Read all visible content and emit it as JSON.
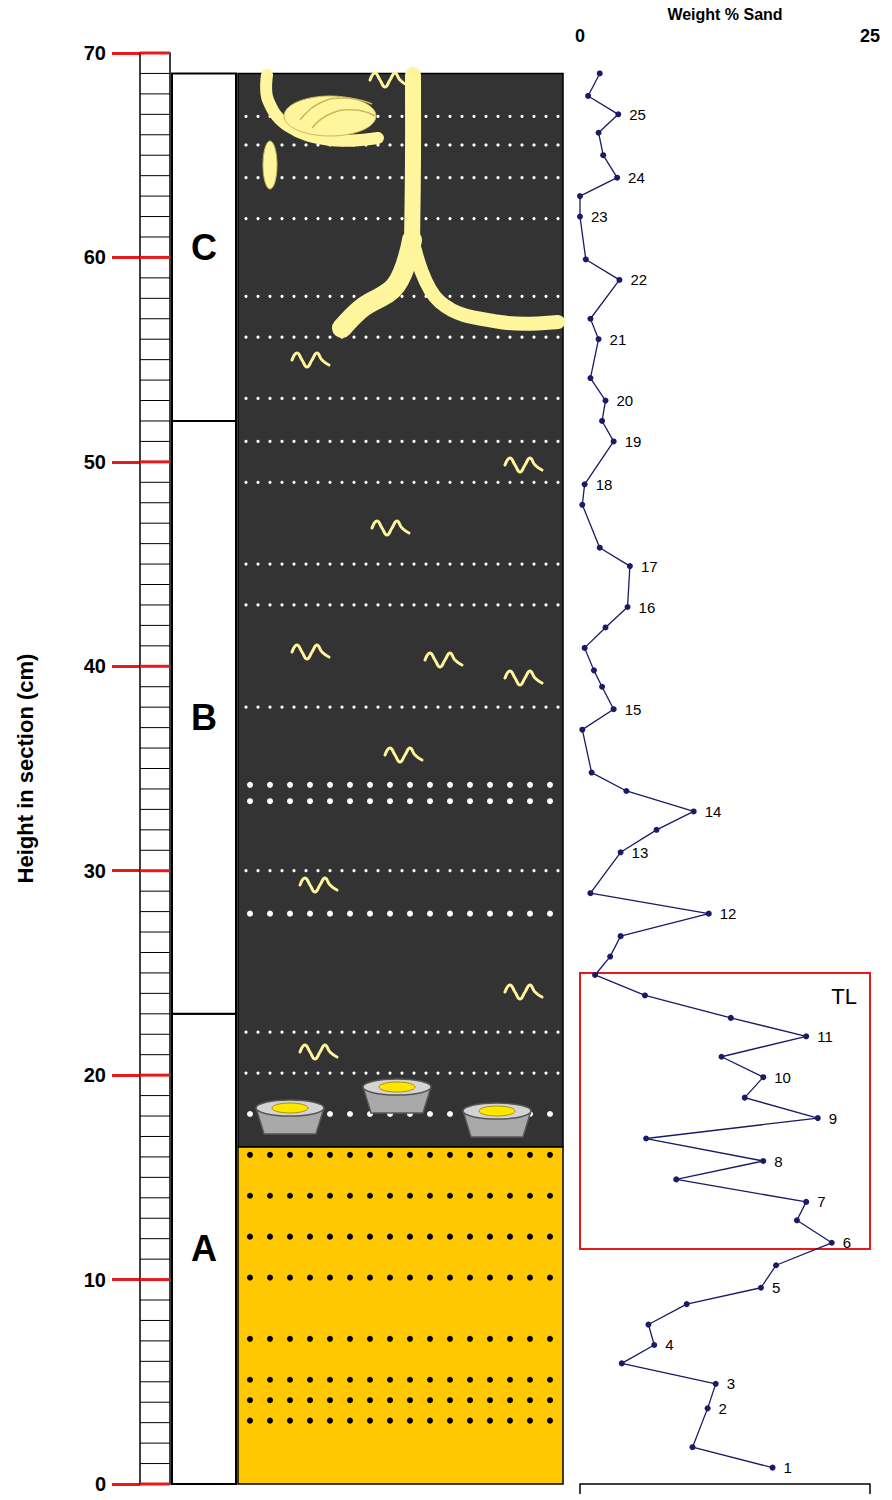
{
  "chart_data": {
    "type": "line",
    "x_label": "Weight % Sand",
    "y_label": "Height in section (cm)",
    "xlim": [
      0,
      25
    ],
    "xticks": [
      0,
      25
    ],
    "ylim": [
      0,
      70
    ],
    "yticks": [
      0,
      10,
      20,
      30,
      40,
      50,
      60,
      70
    ],
    "series": [
      {
        "color": "#1a1a66",
        "marker": "circle",
        "line_style": "solid",
        "x": [
          16.6,
          9.7,
          11.0,
          11.7,
          3.6,
          6.4,
          5.9,
          9.2,
          15.6,
          16.9,
          21.7,
          18.7,
          19.5,
          8.3,
          15.8,
          5.7,
          20.5,
          14.2,
          15.8,
          12.2,
          19.5,
          13.0,
          5.6,
          1.3,
          2.6,
          3.5,
          11.1,
          0.9,
          3.5,
          6.6,
          9.8,
          4.0,
          1.0,
          0.2,
          2.9,
          1.9,
          1.2,
          0.4,
          2.2,
          4.1,
          4.3,
          1.7,
          0.2,
          0.4,
          2.9,
          1.9,
          2.2,
          0.9,
          1.6,
          0.9,
          3.4,
          0.5,
          0.0,
          0.0,
          3.2,
          2.0,
          1.6,
          3.3,
          0.7,
          1.7
        ],
        "y": [
          0.8,
          1.8,
          3.7,
          4.9,
          5.9,
          6.8,
          7.8,
          8.8,
          9.6,
          10.7,
          11.8,
          12.9,
          13.8,
          14.9,
          15.8,
          16.9,
          17.9,
          18.9,
          19.9,
          20.9,
          21.9,
          22.8,
          23.9,
          24.9,
          25.8,
          26.8,
          27.9,
          28.9,
          30.9,
          32.0,
          32.9,
          33.9,
          34.8,
          36.9,
          37.9,
          39.0,
          39.8,
          40.9,
          41.9,
          42.9,
          44.9,
          45.8,
          47.9,
          48.9,
          51.0,
          52.0,
          53.0,
          54.1,
          56.0,
          57.0,
          58.9,
          59.9,
          62.0,
          63.0,
          63.9,
          65.0,
          66.1,
          67.0,
          67.9,
          69.0
        ],
        "point_labels": [
          "1",
          null,
          "2",
          "3",
          null,
          "4",
          null,
          null,
          "5",
          null,
          "6",
          null,
          "7",
          null,
          "8",
          null,
          "9",
          null,
          "10",
          null,
          "11",
          null,
          null,
          null,
          null,
          null,
          "12",
          null,
          "13",
          null,
          "14",
          null,
          null,
          null,
          "15",
          null,
          null,
          null,
          null,
          "16",
          "17",
          null,
          null,
          "18",
          "19",
          null,
          "20",
          null,
          "21",
          null,
          "22",
          null,
          "23",
          null,
          "24",
          null,
          null,
          "25",
          null,
          null
        ]
      }
    ],
    "annotations": [
      {
        "text": "TL",
        "x_range": [
          0,
          25
        ],
        "y_range": [
          11.5,
          25
        ],
        "color": "#e8191b"
      }
    ],
    "units": [
      {
        "label": "A",
        "from": 0,
        "to": 23
      },
      {
        "label": "B",
        "from": 23,
        "to": 52
      },
      {
        "label": "C",
        "from": 52,
        "to": 69
      }
    ],
    "lithology": [
      {
        "from": 0,
        "to": 16.5,
        "color": "#ffc800",
        "dot_color": "#000000",
        "coarse_dot_rows": [
          3.1,
          4.1,
          5.1,
          7.1,
          10.1,
          12.1,
          14.1,
          16.1
        ]
      },
      {
        "from": 16.5,
        "to": 69,
        "color": "#333333",
        "dot_color": "#ffffff",
        "dot_rows": [
          20.1,
          22.1,
          30.0,
          38.0,
          43.0,
          45.0,
          49.0,
          51.0,
          53.1,
          56.1,
          58.1,
          61.9,
          63.9,
          65.5,
          66.9
        ],
        "coarse_dot_rows": [
          18.1,
          27.9,
          33.4,
          34.2
        ]
      }
    ]
  }
}
